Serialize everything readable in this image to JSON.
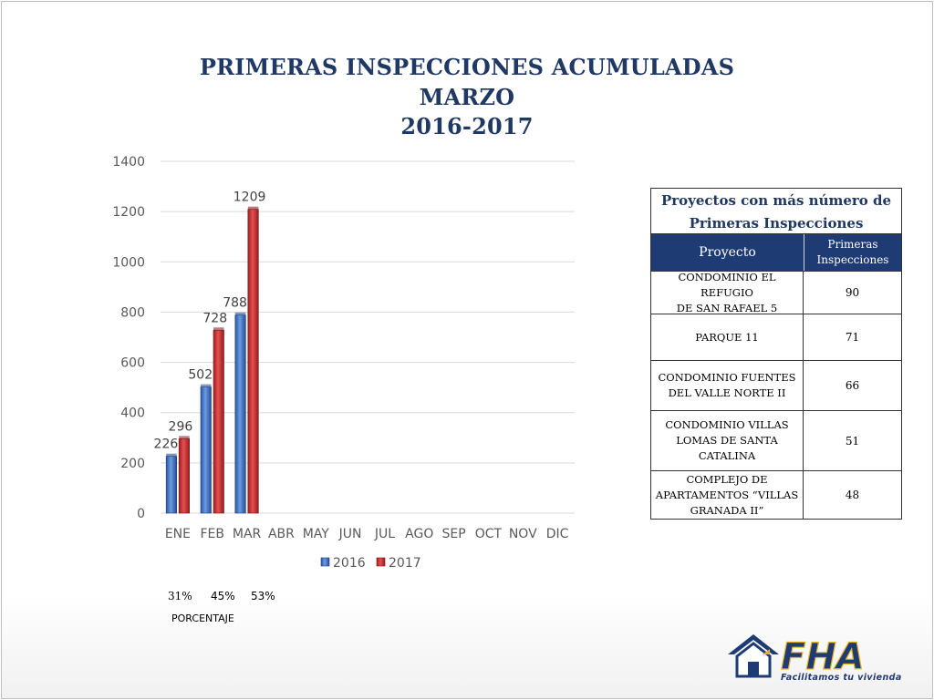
{
  "title": {
    "line1": "PRIMERAS INSPECCIONES ACUMULADAS",
    "line2": "MARZO",
    "line3": "2016-2017"
  },
  "colors": {
    "title": "#1f3864",
    "series_2016": "#3a6fc7",
    "series_2017": "#c0262c",
    "table_header": "#1f3b73",
    "gridline": "#d9d9d9"
  },
  "chart_data": {
    "type": "bar",
    "categories": [
      "ENE",
      "FEB",
      "MAR",
      "ABR",
      "MAY",
      "JUN",
      "JUL",
      "AGO",
      "SEP",
      "OCT",
      "NOV",
      "DIC"
    ],
    "series": [
      {
        "name": "2016",
        "values": [
          226,
          502,
          788,
          null,
          null,
          null,
          null,
          null,
          null,
          null,
          null,
          null
        ]
      },
      {
        "name": "2017",
        "values": [
          296,
          728,
          1209,
          null,
          null,
          null,
          null,
          null,
          null,
          null,
          null,
          null
        ]
      }
    ],
    "yticks": [
      0,
      200,
      400,
      600,
      800,
      1000,
      1200,
      1400
    ],
    "ylim": [
      0,
      1400
    ],
    "grid": true,
    "legend": "bottom"
  },
  "percentages": {
    "values": [
      "31%",
      "45%",
      "53%"
    ],
    "label": "PORCENTAJE"
  },
  "table": {
    "caption_line1": "Proyectos con más número de",
    "caption_line2": "Primeras Inspecciones",
    "header_project": "Proyecto",
    "header_count_line1": "Primeras",
    "header_count_line2": "Inspecciones",
    "rows": [
      {
        "name_lines": [
          "CONDOMINIO EL REFUGIO",
          "DE SAN RAFAEL 5"
        ],
        "count": "90"
      },
      {
        "name_lines": [
          "PARQUE 11"
        ],
        "count": "71"
      },
      {
        "name_lines": [
          "CONDOMINIO FUENTES",
          "DEL VALLE NORTE II"
        ],
        "count": "66"
      },
      {
        "name_lines": [
          "CONDOMINIO VILLAS",
          "LOMAS DE SANTA",
          "CATALINA"
        ],
        "count": "51"
      },
      {
        "name_lines": [
          "COMPLEJO DE",
          "APARTAMENTOS “VILLAS",
          "GRANADA II”"
        ],
        "count": "48"
      }
    ]
  },
  "logo": {
    "text": "FHA",
    "tagline": "Facilitamos tu vivienda",
    "icon": "house-icon"
  }
}
